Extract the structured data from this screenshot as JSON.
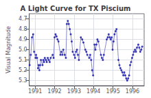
{
  "chart_data": {
    "type": "line",
    "title": "A Light Curve for TX Piscium",
    "ylabel": "Visual Magnitude",
    "xlim": [
      1990.7,
      1996.6
    ],
    "ylim": [
      5.35,
      4.65
    ],
    "xticks": [
      1991,
      1992,
      1993,
      1994,
      1995,
      1996
    ],
    "yticks": [
      4.7,
      4.8,
      4.9,
      {
        "value": 5.0,
        "label": "5.0"
      },
      5.1,
      5.2,
      5.3
    ],
    "grid": true,
    "x": [
      1990.72,
      1990.78,
      1990.84,
      1990.9,
      1990.95,
      1991.02,
      1991.05,
      1991.1,
      1991.15,
      1991.18,
      1991.22,
      1991.26,
      1991.3,
      1991.38,
      1991.42,
      1991.46,
      1991.5,
      1991.55,
      1991.6,
      1991.65,
      1991.7,
      1991.75,
      1991.8,
      1991.9,
      1991.95,
      1992.0,
      1992.05,
      1992.1,
      1992.15,
      1992.2,
      1992.3,
      1992.35,
      1992.4,
      1992.45,
      1992.52,
      1992.58,
      1992.63,
      1992.68,
      1992.73,
      1992.78,
      1992.83,
      1992.88,
      1992.93,
      1993.0,
      1993.05,
      1993.1,
      1993.15,
      1993.2,
      1993.25,
      1993.35,
      1993.42,
      1993.48,
      1993.58,
      1993.63,
      1993.68,
      1993.78,
      1993.83,
      1993.88,
      1993.93,
      1993.98,
      1994.05,
      1994.1,
      1994.15,
      1994.2,
      1994.25,
      1994.38,
      1994.43,
      1994.48,
      1994.53,
      1994.68,
      1994.73,
      1994.78,
      1994.83,
      1994.88,
      1994.93,
      1994.98,
      1995.03,
      1995.08,
      1995.13,
      1995.18,
      1995.28,
      1995.33,
      1995.38,
      1995.43,
      1995.48,
      1995.53,
      1995.58,
      1995.63,
      1995.68,
      1995.73,
      1995.78,
      1995.83,
      1995.88,
      1995.93,
      1995.98,
      1996.03,
      1996.08,
      1996.13,
      1996.18,
      1996.23,
      1996.3,
      1996.35,
      1996.4,
      1996.45,
      1996.5
    ],
    "series": [
      {
        "type": "line",
        "color": "#8888cc",
        "values": [
          5.15,
          5.05,
          4.88,
          4.85,
          5.02,
          5.08,
          5.05,
          5.08,
          5.18,
          5.15,
          5.2,
          5.15,
          5.1,
          5.15,
          5.1,
          5.12,
          5.08,
          5.1,
          5.12,
          5.08,
          5.1,
          5.12,
          5.08,
          5.05,
          5.08,
          4.88,
          4.85,
          4.87,
          4.9,
          4.92,
          5.05,
          5.02,
          5.05,
          5.0,
          5.05,
          5.08,
          4.75,
          4.72,
          4.75,
          4.8,
          4.85,
          4.92,
          5.02,
          5.05,
          5.08,
          5.02,
          5.0,
          5.05,
          5.1,
          4.88,
          4.9,
          4.93,
          5.0,
          5.02,
          5.05,
          5.08,
          5.05,
          5.1,
          5.2,
          5.25,
          4.95,
          5.0,
          4.95,
          4.9,
          4.92,
          5.05,
          5.08,
          5.1,
          5.05,
          4.9,
          4.88,
          4.85,
          4.88,
          4.9,
          4.88,
          5.0,
          4.92,
          4.85,
          4.82,
          4.8,
          5.1,
          5.15,
          5.18,
          5.2,
          5.22,
          5.25,
          5.22,
          5.25,
          5.28,
          5.3,
          5.28,
          5.25,
          5.15,
          5.12,
          5.08,
          5.05,
          5.02,
          5.0,
          5.02,
          4.98,
          4.95,
          4.98,
          5.02,
          5.0,
          4.97
        ]
      },
      {
        "type": "scatter",
        "color": "#1111aa",
        "values": [
          5.15,
          5.05,
          4.88,
          4.85,
          5.02,
          5.08,
          5.05,
          5.08,
          5.18,
          5.15,
          5.2,
          5.15,
          5.1,
          5.15,
          5.1,
          5.12,
          5.08,
          5.1,
          5.12,
          5.08,
          5.1,
          5.12,
          5.08,
          5.05,
          5.08,
          4.88,
          4.85,
          4.87,
          4.9,
          4.92,
          5.05,
          5.02,
          5.05,
          5.0,
          5.05,
          5.08,
          4.75,
          4.72,
          4.75,
          4.8,
          4.85,
          4.92,
          5.02,
          5.05,
          5.08,
          5.02,
          5.0,
          5.05,
          5.1,
          4.88,
          4.9,
          4.93,
          5.0,
          5.02,
          5.05,
          5.08,
          5.05,
          5.1,
          5.2,
          5.25,
          4.95,
          5.0,
          4.95,
          4.9,
          4.92,
          5.05,
          5.08,
          5.1,
          5.05,
          4.9,
          4.88,
          4.85,
          4.88,
          4.9,
          4.88,
          5.0,
          4.92,
          4.85,
          4.82,
          4.8,
          5.1,
          5.15,
          5.18,
          5.2,
          5.22,
          5.25,
          5.22,
          5.25,
          5.28,
          5.3,
          5.28,
          5.25,
          5.15,
          5.12,
          5.08,
          5.05,
          5.02,
          5.0,
          5.02,
          4.98,
          4.95,
          4.98,
          5.02,
          5.0,
          4.97
        ]
      }
    ]
  }
}
